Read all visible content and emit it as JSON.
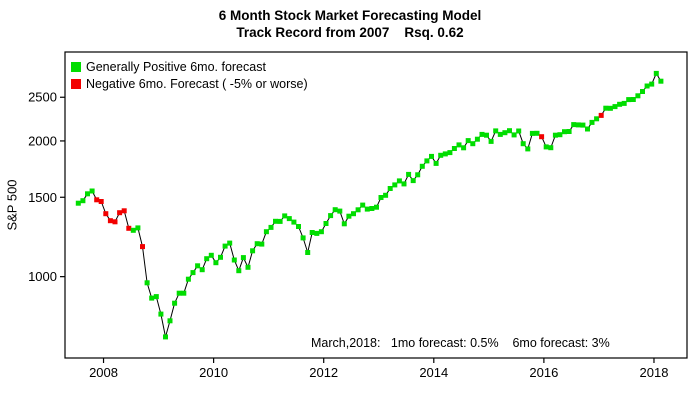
{
  "chart_data": {
    "type": "line",
    "title": "6 Month Stock Market Forecasting Model",
    "subtitle": "Track Record from 2007    Rsq. 0.62",
    "xlabel": "",
    "ylabel": "S&P 500",
    "annotation": "March,2018:   1mo forecast: 0.5%    6mo forecast: 3%",
    "x_ticks": [
      2008,
      2010,
      2012,
      2014,
      2016,
      2018
    ],
    "y_ticks": [
      1000,
      1500,
      2000,
      2500
    ],
    "x_range": [
      2007.3,
      2018.6
    ],
    "y_range": [
      660,
      3150
    ],
    "y_scale": "log",
    "grid": false,
    "legend": {
      "position": "top-left",
      "entries": [
        {
          "label": "Generally Positive 6mo. forecast",
          "marker": "square",
          "color": "#00dd00"
        },
        {
          "label": "Negative 6mo. Forecast ( -5% or worse)",
          "marker": "square",
          "color": "#f20000"
        }
      ]
    },
    "colors": {
      "positive": "#00dd00",
      "negative": "#f20000",
      "line": "#000000"
    },
    "series": {
      "name": "S&P 500 monthly close",
      "start": "2007-07",
      "frequency": "monthly",
      "values": [
        1455,
        1474,
        1527,
        1549,
        1481,
        1468,
        1379,
        1331,
        1323,
        1386,
        1400,
        1280,
        1267,
        1283,
        1166,
        969,
        896,
        903,
        826,
        735,
        798,
        873,
        919,
        919,
        987,
        1021,
        1057,
        1036,
        1096,
        1115,
        1074,
        1104,
        1169,
        1187,
        1089,
        1031,
        1102,
        1049,
        1141,
        1183,
        1181,
        1258,
        1286,
        1327,
        1326,
        1364,
        1345,
        1321,
        1292,
        1219,
        1131,
        1253,
        1247,
        1258,
        1312,
        1366,
        1408,
        1398,
        1310,
        1362,
        1379,
        1407,
        1441,
        1412,
        1416,
        1426,
        1498,
        1515,
        1569,
        1598,
        1631,
        1606,
        1686,
        1633,
        1682,
        1757,
        1806,
        1848,
        1783,
        1859,
        1872,
        1884,
        1924,
        1960,
        1931,
        2003,
        1972,
        2018,
        2068,
        2059,
        1995,
        2105,
        2068,
        2086,
        2107,
        2063,
        2104,
        1972,
        1920,
        2079,
        2080,
        2044,
        1940,
        1932,
        2060,
        2065,
        2097,
        2099,
        2174,
        2171,
        2168,
        2126,
        2199,
        2239,
        2279,
        2364,
        2363,
        2384,
        2412,
        2423,
        2470,
        2472,
        2519,
        2575,
        2648,
        2674,
        2824,
        2714
      ],
      "negative_forecast_indices": [
        4,
        5,
        6,
        7,
        8,
        9,
        10,
        11,
        14,
        101,
        114
      ]
    }
  }
}
